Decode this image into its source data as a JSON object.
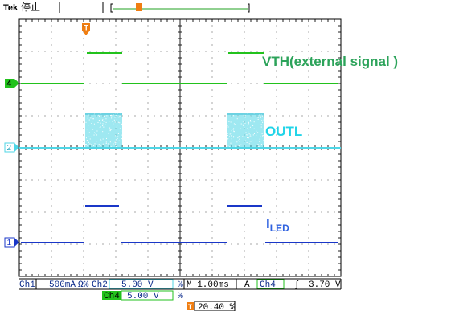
{
  "header": {
    "brand": "Tek",
    "state": "停止",
    "trigger_marker": "T",
    "trigger_position_marker": "T"
  },
  "channels": {
    "ch4_marker": "4",
    "ch2_marker": "2",
    "ch1_marker": "1"
  },
  "annotations": {
    "vth": "VTH(external signal )",
    "outl": "OUTL",
    "iled_main": "I",
    "iled_sub": "LED"
  },
  "status_bar": {
    "ch1_label": "Ch1",
    "ch1_scale": "500mA",
    "ch1_unit_glyph": "Ω℅",
    "ch2_label": "Ch2",
    "ch2_scale": "5.00 V",
    "ch2_suffix": "℅",
    "timebase": "M 1.00ms",
    "acq_mode": "A",
    "trig_source": "Ch4",
    "trig_slope": "ʃ",
    "trig_level": "3.70 V",
    "ch4_label": "Ch4",
    "ch4_scale": "5.00 V",
    "ch4_suffix": "℅",
    "trig_marker": "T",
    "trig_percent": "20.40 %"
  },
  "colors": {
    "ch4": "#22c21c",
    "ch2": "#4fd6e6",
    "ch1": "#1a37c8",
    "vth_text": "#2ca35a",
    "outl_text": "#21d4e8",
    "iled_text": "#2f62e0",
    "trigger": "#f07e12"
  }
}
